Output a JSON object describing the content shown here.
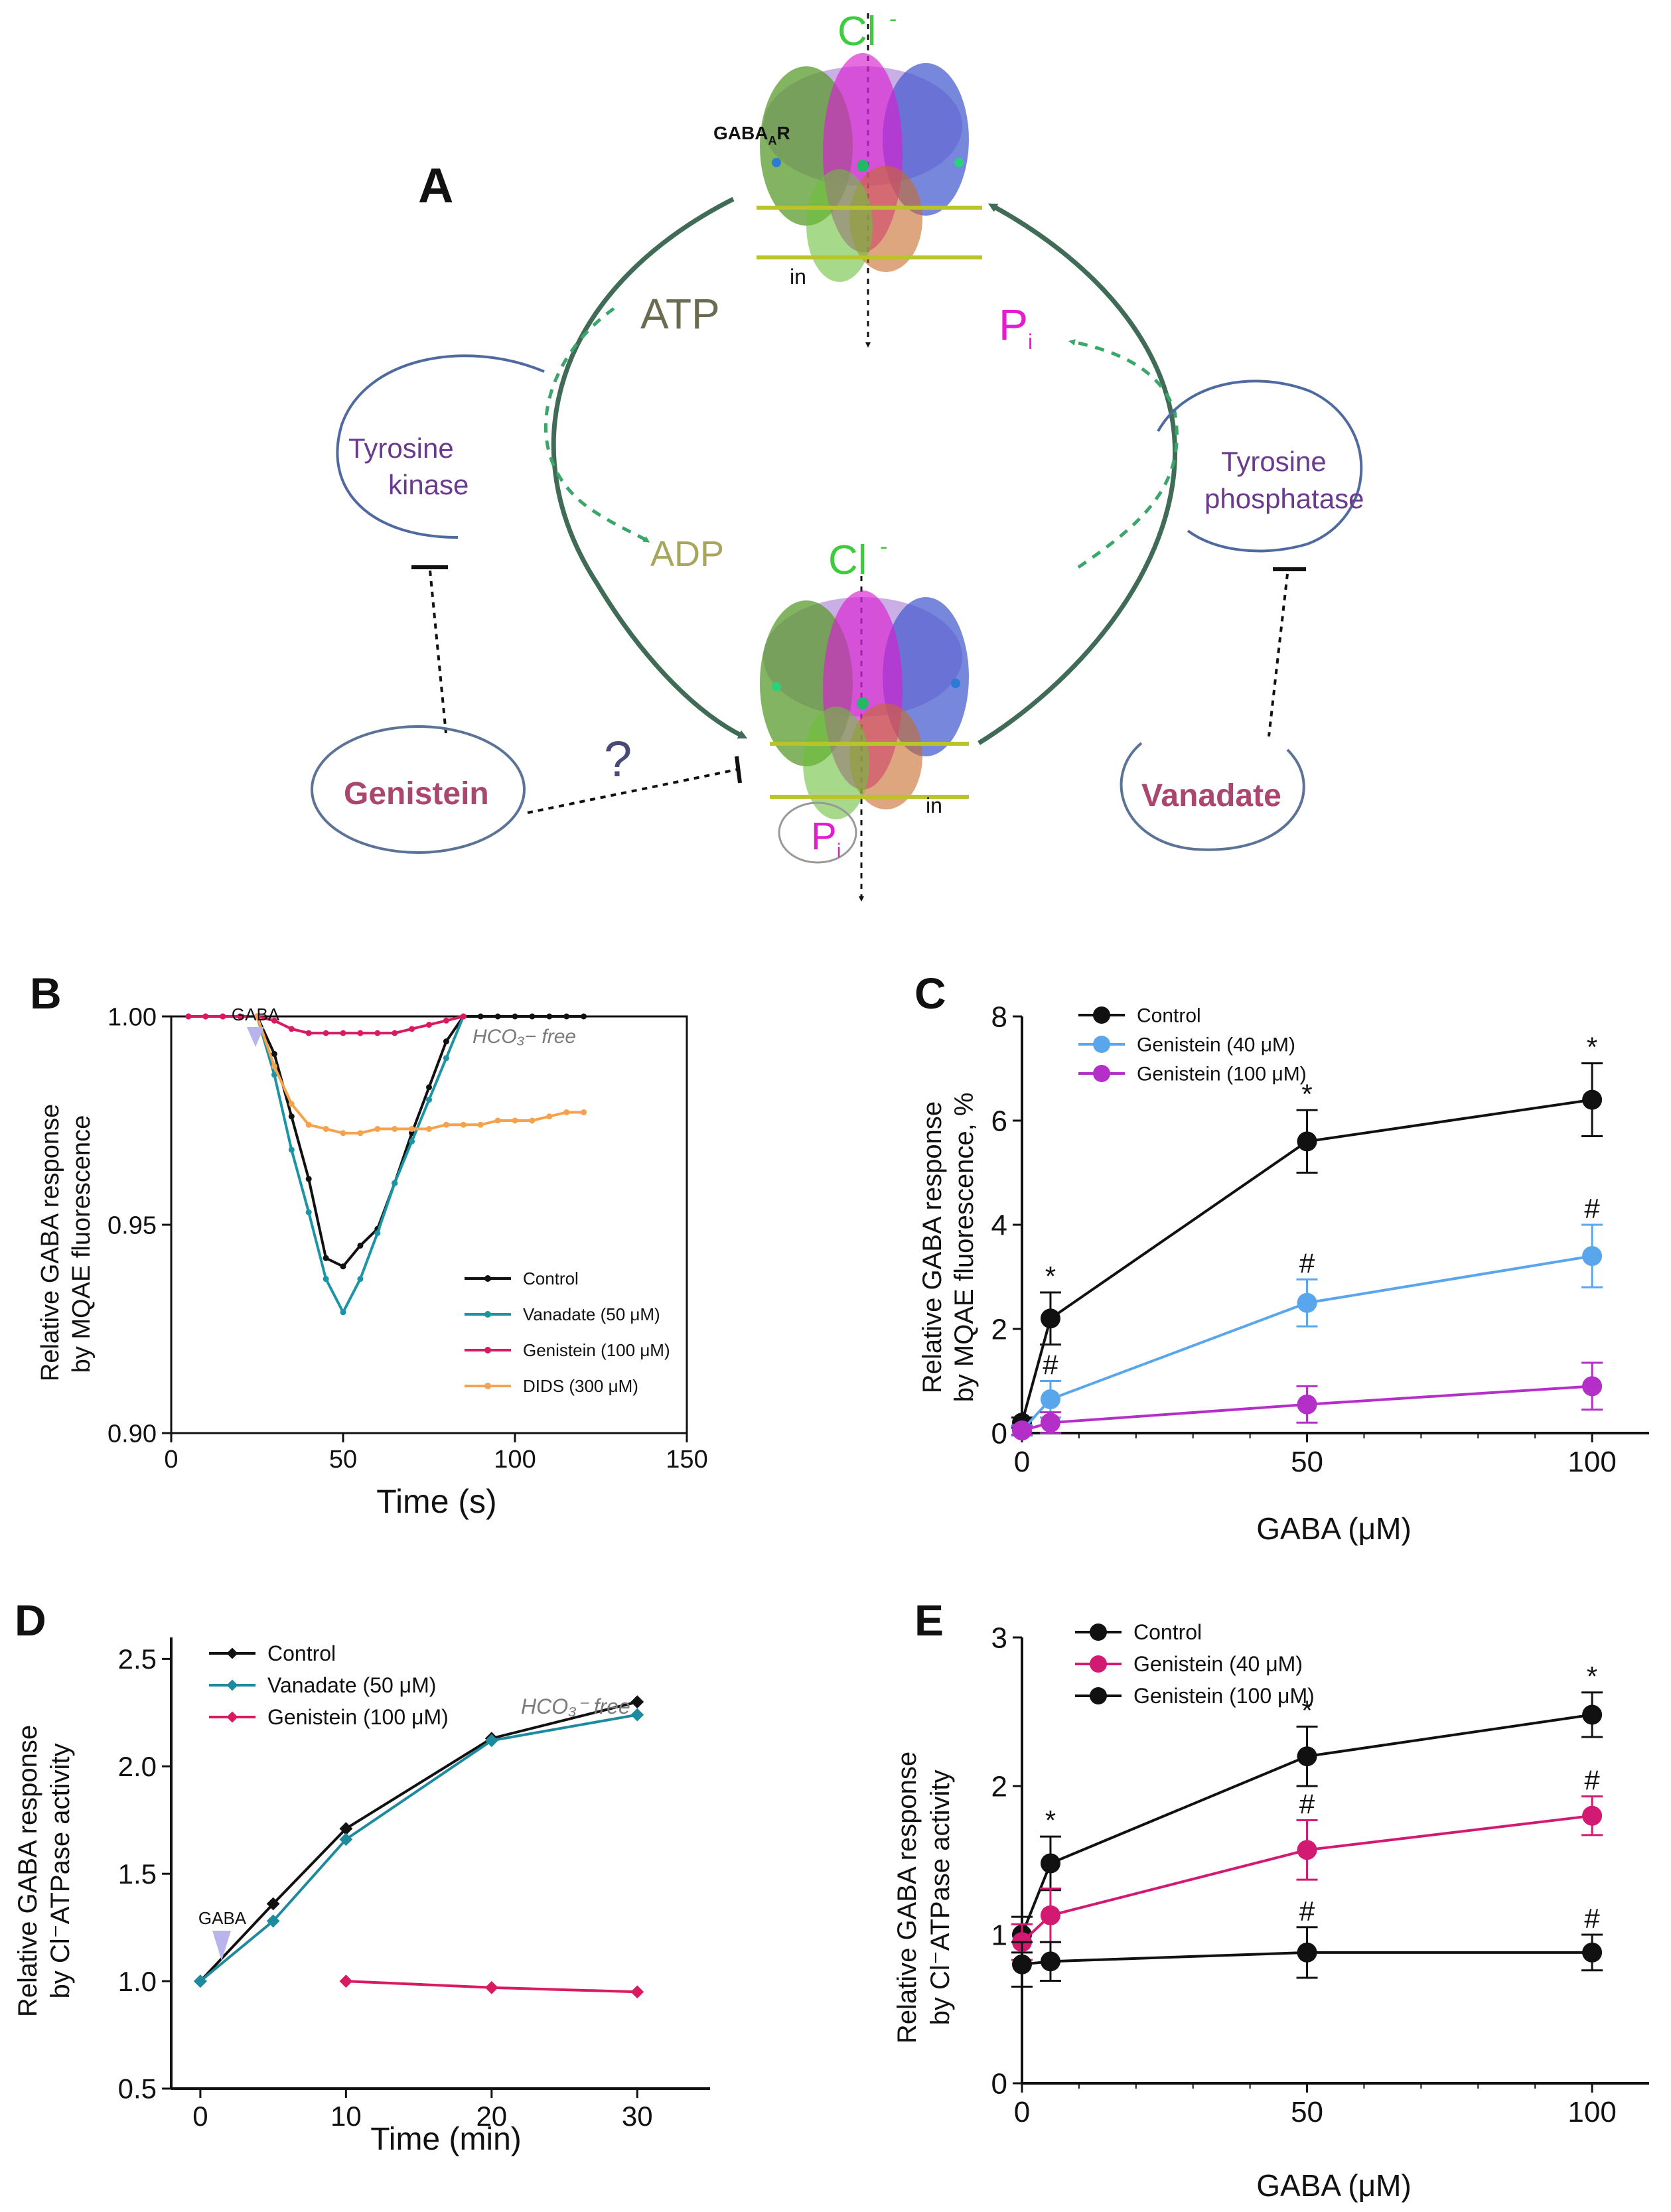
{
  "colors": {
    "black": "#111111",
    "arrow": "#3f6b57",
    "dashed": "#3aa66a",
    "purple": "#6a3a8e",
    "magenta": "#e31ccf",
    "cl_green": "#3ccc3c",
    "olive": "#6b6b52",
    "khaki": "#a7a65c",
    "ellipse": "#4f6aa0",
    "blob": "#5b7397",
    "label_pink": "#a9476e",
    "teal": "#1b95a5",
    "crimson": "#d81b60",
    "orange": "#f6a24a",
    "lightblue": "#5aa6ec",
    "magentaC": "#b42fc8",
    "crimsonE": "#d21a73",
    "tealD": "#1e8a9e",
    "gaba_arrow": "#b8b4ee",
    "gray_text": "#7a7a7a",
    "membrane": "#b8c42a"
  },
  "panelA": {
    "letter": "A",
    "cl_top": "Cl",
    "cl_mid": "Cl",
    "cl_sup": "-",
    "receptor_label": "GABA",
    "receptor_sub": "A",
    "receptor_tail": "R",
    "in_label": "in",
    "atp": "ATP",
    "adp": "ADP",
    "pi_main": "P",
    "pi_sub": "i",
    "kinase_line1": "Tyrosine",
    "kinase_line2": "kinase",
    "phosphatase_line1": "Tyrosine",
    "phosphatase_line2": "phosphatase",
    "genistein": "Genistein",
    "vanadate": "Vanadate",
    "question": "?",
    "receptor_top_icon": "gaba-a-receptor-structure-icon",
    "receptor_bottom_icon": "phosphorylated-receptor-structure-icon"
  },
  "chart_data": [
    {
      "panel": "B",
      "type": "line",
      "ylabel_line1": "Relative GABA response",
      "ylabel_line2": "by MQAE fluorescence",
      "xlabel": "Time (s)",
      "xlim": [
        0,
        150
      ],
      "ylim": [
        0.9,
        1.0
      ],
      "xticks": [
        "0",
        "50",
        "100",
        "150"
      ],
      "yticks": [
        "0.90",
        "0.95",
        "1.00"
      ],
      "ytick_values": [
        0.9,
        0.95,
        1.0
      ],
      "xtick_values": [
        0,
        50,
        100,
        150
      ],
      "annotation_gaba": "GABA",
      "annotation_free": "HCO₃− free",
      "series": [
        {
          "name": "Control",
          "color": "#111111",
          "x": [
            5,
            10,
            15,
            20,
            25,
            30,
            35,
            40,
            45,
            50,
            55,
            60,
            65,
            70,
            75,
            80,
            85,
            90,
            95,
            100,
            105,
            110,
            115,
            120
          ],
          "y": [
            1.0,
            1.0,
            1.0,
            1.0,
            1.0,
            0.991,
            0.976,
            0.961,
            0.942,
            0.94,
            0.945,
            0.949,
            0.96,
            0.972,
            0.983,
            0.994,
            1.0,
            1.0,
            1.0,
            1.0,
            1.0,
            1.0,
            1.0,
            1.0
          ]
        },
        {
          "name": "Vanadate (50 μM)",
          "color": "#1b95a5",
          "x": [
            25,
            30,
            35,
            40,
            45,
            50,
            55,
            60,
            65,
            70,
            75,
            80,
            85
          ],
          "y": [
            1.0,
            0.986,
            0.968,
            0.953,
            0.937,
            0.929,
            0.937,
            0.948,
            0.96,
            0.97,
            0.98,
            0.99,
            1.0
          ]
        },
        {
          "name": "Genistein (100 μM)",
          "color": "#d81b60",
          "x": [
            5,
            10,
            15,
            20,
            25,
            30,
            35,
            40,
            45,
            50,
            55,
            60,
            65,
            70,
            75,
            80,
            85
          ],
          "y": [
            1.0,
            1.0,
            1.0,
            1.0,
            1.0,
            0.999,
            0.997,
            0.996,
            0.996,
            0.996,
            0.996,
            0.996,
            0.996,
            0.997,
            0.998,
            0.999,
            1.0
          ]
        },
        {
          "name": "DIDS (300 μM)",
          "color": "#f6a24a",
          "x": [
            25,
            30,
            35,
            40,
            45,
            50,
            55,
            60,
            65,
            70,
            75,
            80,
            85,
            90,
            95,
            100,
            105,
            110,
            115,
            120
          ],
          "y": [
            1.0,
            0.988,
            0.979,
            0.974,
            0.973,
            0.972,
            0.972,
            0.973,
            0.973,
            0.973,
            0.973,
            0.974,
            0.974,
            0.974,
            0.975,
            0.975,
            0.975,
            0.976,
            0.977,
            0.977
          ]
        }
      ]
    },
    {
      "panel": "C",
      "type": "line",
      "ylabel_line1": "Relative GABA response",
      "ylabel_line2": "by MQAE fluorescence, %",
      "xlabel": "GABA (μM)",
      "xlim": [
        0,
        110
      ],
      "ylim": [
        0,
        8
      ],
      "xticks": [
        "0",
        "50",
        "100"
      ],
      "xtick_values": [
        0,
        50,
        100
      ],
      "yticks": [
        "0",
        "2",
        "4",
        "6",
        "8"
      ],
      "ytick_values": [
        0,
        2,
        4,
        6,
        8
      ],
      "series": [
        {
          "name": "Control",
          "color": "#111111",
          "x": [
            0,
            5,
            50,
            100
          ],
          "y": [
            0.2,
            2.2,
            5.6,
            6.4
          ],
          "err": [
            0.1,
            0.5,
            0.6,
            0.7
          ],
          "marks": [
            "",
            "*",
            "*",
            "*"
          ]
        },
        {
          "name": "Genistein (40 μM)",
          "color": "#5aa6ec",
          "x": [
            0,
            5,
            50,
            100
          ],
          "y": [
            0.05,
            0.65,
            2.5,
            3.4
          ],
          "err": [
            0.1,
            0.35,
            0.45,
            0.6
          ],
          "marks": [
            "",
            "#",
            "#",
            "#"
          ]
        },
        {
          "name": "Genistein (100 μM)",
          "color": "#b42fc8",
          "x": [
            0,
            5,
            50,
            100
          ],
          "y": [
            0.05,
            0.2,
            0.55,
            0.9
          ],
          "err": [
            0.08,
            0.2,
            0.35,
            0.45
          ],
          "marks": [
            "",
            "",
            "",
            ""
          ]
        }
      ]
    },
    {
      "panel": "D",
      "type": "line",
      "ylabel_line1": "Relative GABA response",
      "ylabel_line2": "by Cl⁻ATPase activity",
      "xlabel": "Time (min)",
      "xlim": [
        -2,
        35
      ],
      "ylim": [
        0.5,
        2.6
      ],
      "xticks": [
        "0",
        "10",
        "20",
        "30"
      ],
      "xtick_values": [
        0,
        10,
        20,
        30
      ],
      "yticks": [
        "0.5",
        "1.0",
        "1.5",
        "2.0",
        "2.5"
      ],
      "ytick_values": [
        0.5,
        1.0,
        1.5,
        2.0,
        2.5
      ],
      "annotation_gaba": "GABA",
      "annotation_free": "HCO₃⁻ free",
      "series": [
        {
          "name": "Control",
          "color": "#111111",
          "x": [
            0,
            5,
            10,
            20,
            30
          ],
          "y": [
            1.0,
            1.36,
            1.71,
            2.13,
            2.3
          ]
        },
        {
          "name": "Vanadate (50 μM)",
          "color": "#1e8a9e",
          "x": [
            0,
            5,
            10,
            20,
            30
          ],
          "y": [
            1.0,
            1.28,
            1.66,
            2.12,
            2.24
          ]
        },
        {
          "name": "Genistein (100 μM)",
          "color": "#d81b60",
          "x": [
            10,
            20,
            30
          ],
          "y": [
            1.0,
            0.97,
            0.95
          ]
        }
      ]
    },
    {
      "panel": "E",
      "type": "line",
      "ylabel_line1": "Relative GABA response",
      "ylabel_line2": "by Cl⁻ATPase activity",
      "xlabel": "GABA (μM)",
      "xlim": [
        0,
        110
      ],
      "ylim": [
        0,
        3
      ],
      "xticks": [
        "0",
        "50",
        "100"
      ],
      "xtick_values": [
        0,
        50,
        100
      ],
      "yticks": [
        "0",
        "1",
        "2",
        "3"
      ],
      "ytick_values": [
        0,
        1,
        2,
        3
      ],
      "series": [
        {
          "name": "Control",
          "color": "#111111",
          "x": [
            0,
            5,
            50,
            100
          ],
          "y": [
            1.0,
            1.48,
            2.2,
            2.48
          ],
          "err": [
            0.12,
            0.18,
            0.2,
            0.15
          ],
          "marks": [
            "",
            "*",
            "*",
            "*"
          ]
        },
        {
          "name": "Genistein (40 μM)",
          "color": "#d21a73",
          "x": [
            0,
            5,
            50,
            100
          ],
          "y": [
            0.95,
            1.13,
            1.57,
            1.8
          ],
          "err": [
            0.12,
            0.18,
            0.2,
            0.13
          ],
          "marks": [
            "",
            "",
            "#",
            "#"
          ]
        },
        {
          "name": "Genistein (100 μM)",
          "color": "#111111",
          "x": [
            0,
            5,
            50,
            100
          ],
          "y": [
            0.8,
            0.82,
            0.88,
            0.88
          ],
          "err": [
            0.15,
            0.13,
            0.17,
            0.12
          ],
          "marks": [
            "",
            "",
            "#",
            "#"
          ]
        }
      ]
    }
  ],
  "letters": {
    "B": "B",
    "C": "C",
    "D": "D",
    "E": "E"
  }
}
